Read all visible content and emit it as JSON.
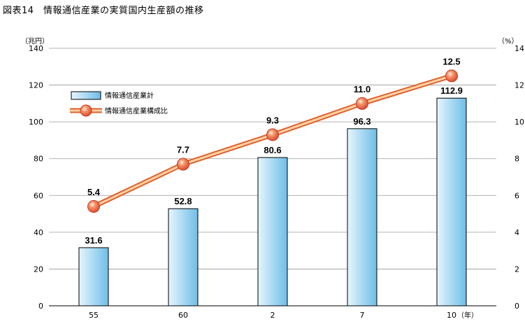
{
  "figure": {
    "title": "図表14　情報通信産業の実質国内生産額の推移"
  },
  "chart_data": {
    "type": "bar",
    "title": "図表14　情報通信産業の実質国内生産額の推移",
    "categories": [
      "55",
      "60",
      "2",
      "7",
      "10"
    ],
    "x_unit": "（年）",
    "left_axis": {
      "unit": "（兆円）",
      "ylim": [
        0,
        140
      ],
      "ticks": [
        0,
        20,
        40,
        60,
        80,
        100,
        120,
        140
      ]
    },
    "right_axis": {
      "unit": "（%）",
      "ylim": [
        0,
        14
      ],
      "ticks": [
        0,
        2,
        4,
        6,
        8,
        10,
        12,
        14
      ]
    },
    "grid": true,
    "legend_position": "top-left",
    "series": [
      {
        "name": "情報通信産業計",
        "type": "bar",
        "axis": "left",
        "values": [
          31.6,
          52.8,
          80.6,
          96.3,
          112.9
        ],
        "labels": [
          "31.6",
          "52.8",
          "80.6",
          "96.3",
          "112.9"
        ],
        "color": "#a8d8f0"
      },
      {
        "name": "情報通信産業構成比",
        "type": "line",
        "axis": "right",
        "values": [
          5.4,
          7.7,
          9.3,
          11.0,
          12.5
        ],
        "labels": [
          "5.4",
          "7.7",
          "9.3",
          "11.0",
          "12.5"
        ],
        "color": "#f0a050"
      }
    ]
  }
}
